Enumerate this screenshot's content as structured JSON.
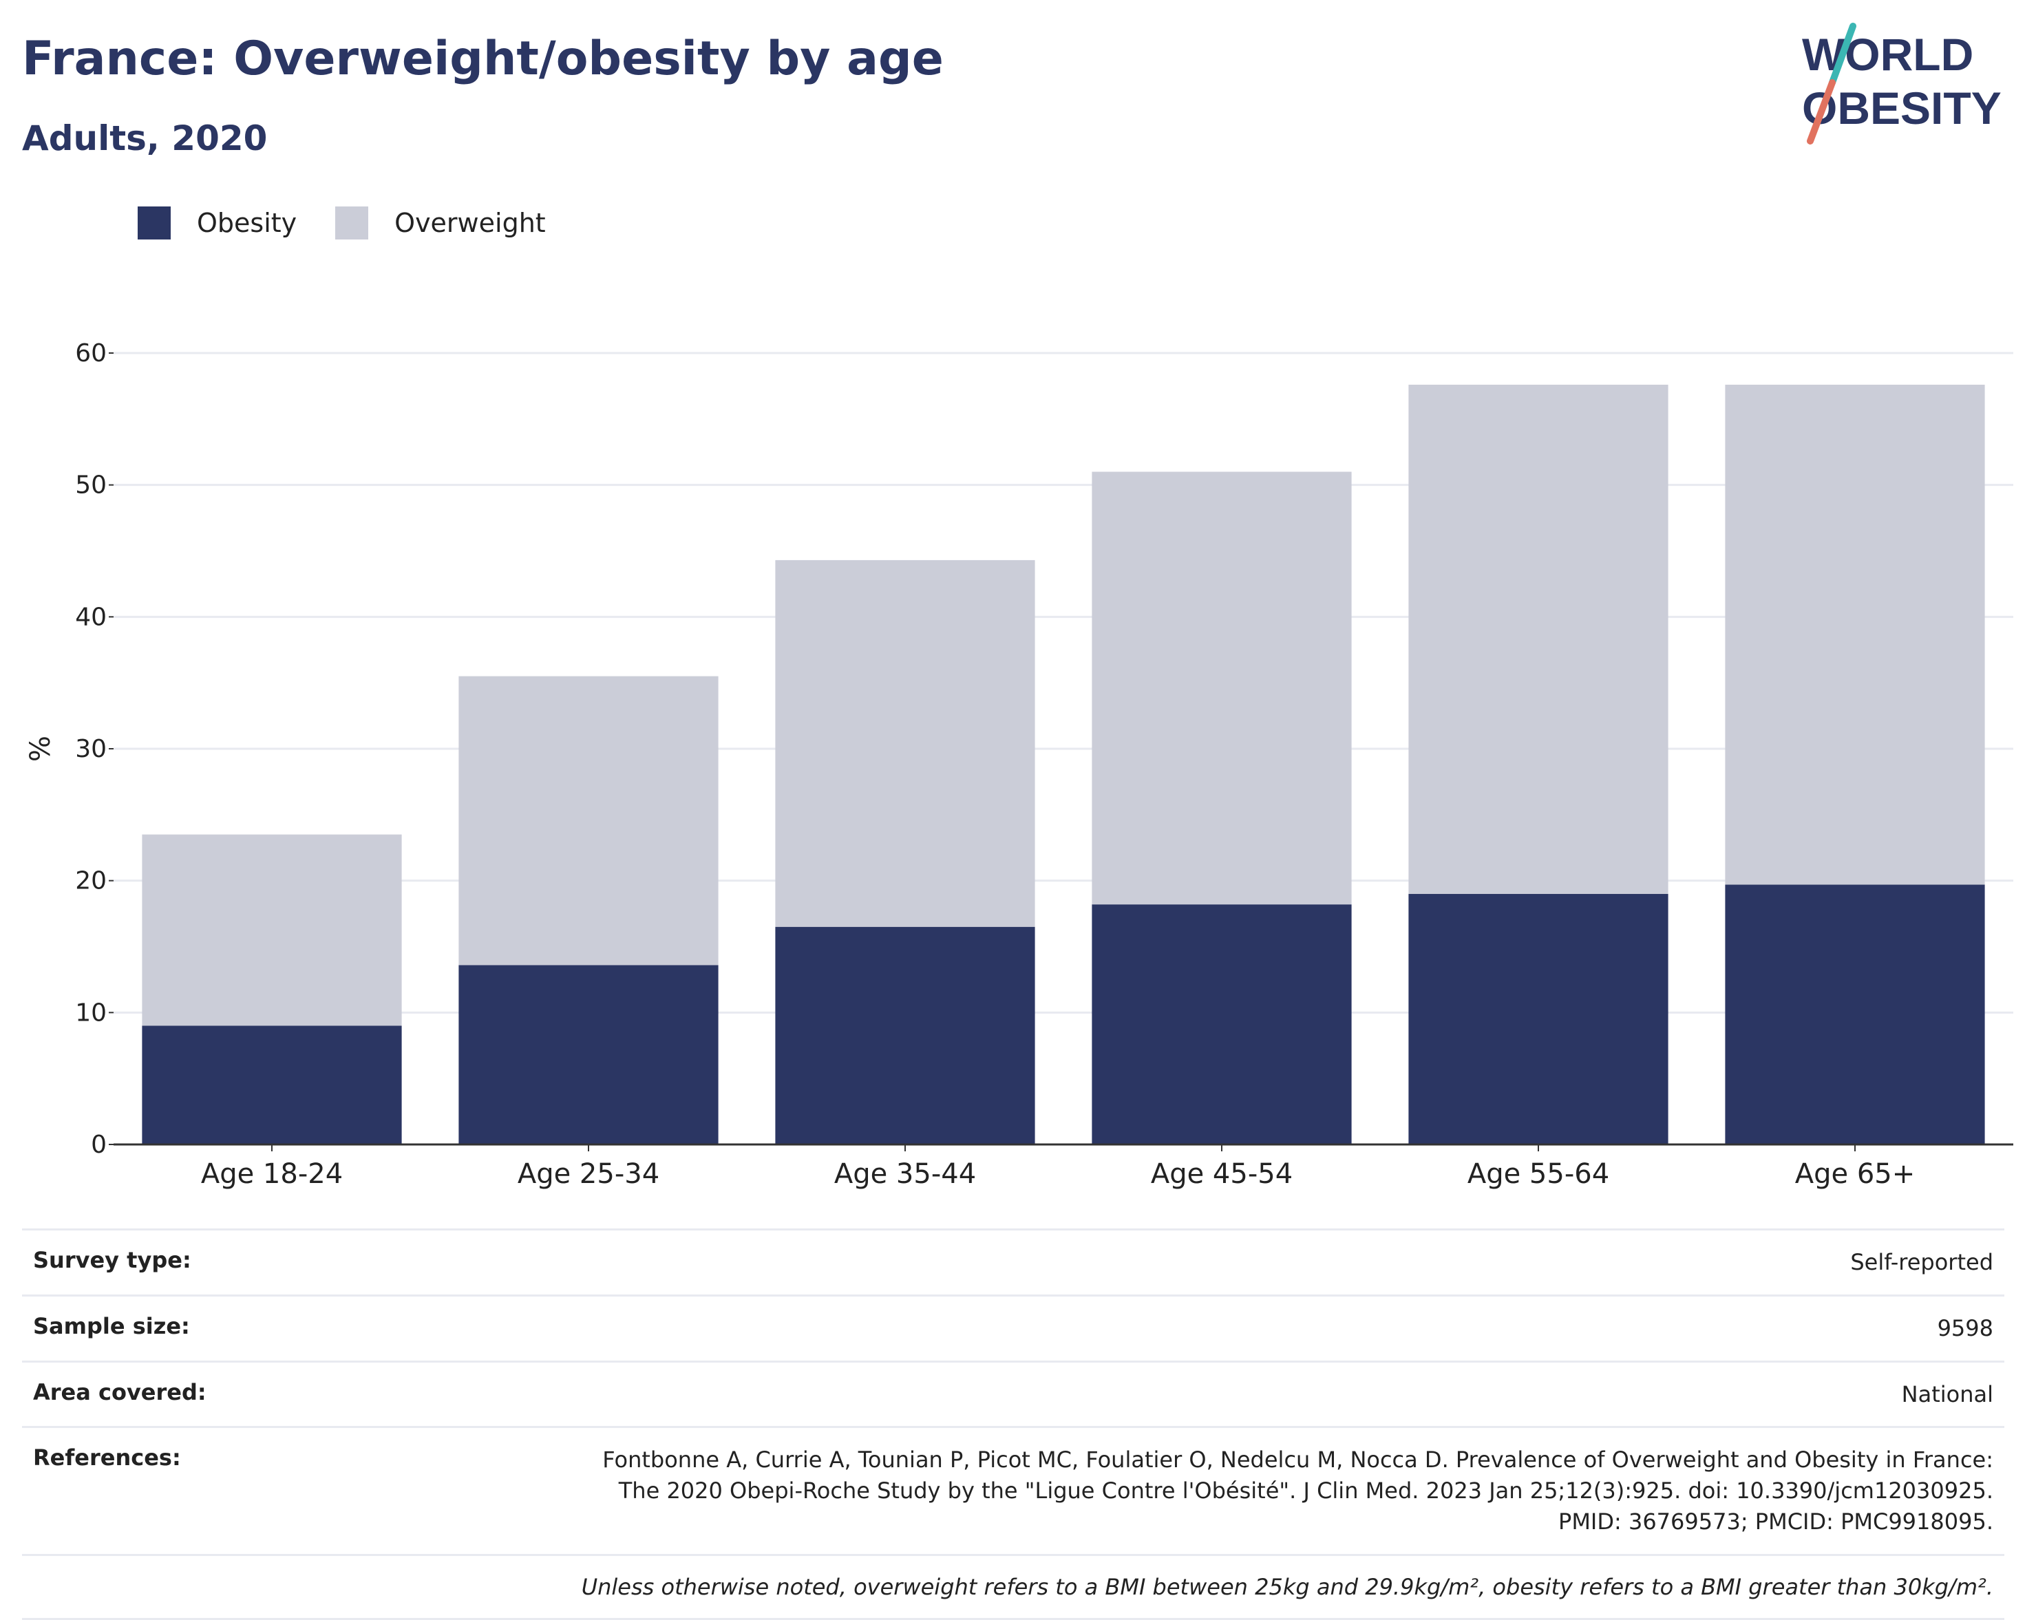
{
  "header": {
    "title": "France: Overweight/obesity by age",
    "subtitle": "Adults, 2020"
  },
  "logo": {
    "line1": "WORLD",
    "line2": "OBESITY"
  },
  "colors": {
    "obesity": "#2b3663",
    "overweight": "#cbcdd8",
    "grid": "#e8eaf0",
    "axis": "#333333"
  },
  "chart_data": {
    "type": "bar",
    "stacked": true,
    "categories": [
      "Age 18-24",
      "Age 25-34",
      "Age 35-44",
      "Age 45-54",
      "Age 55-64",
      "Age 65+"
    ],
    "series": [
      {
        "name": "Obesity",
        "values": [
          9.0,
          13.6,
          16.5,
          18.2,
          19.0,
          19.7
        ]
      },
      {
        "name": "Overweight",
        "values": [
          14.5,
          21.9,
          27.8,
          32.8,
          38.6,
          37.9
        ]
      }
    ],
    "ylabel": "%",
    "ylim": [
      0,
      60
    ],
    "yticks": [
      0,
      10,
      20,
      30,
      40,
      50,
      60
    ],
    "grid": true,
    "legend_position": "top-left"
  },
  "info": [
    {
      "key": "Survey type:",
      "value": "Self-reported"
    },
    {
      "key": "Sample size:",
      "value": "9598"
    },
    {
      "key": "Area covered:",
      "value": "National"
    },
    {
      "key": "References:",
      "value": "Fontbonne A, Currie A, Tounian P, Picot MC, Foulatier O, Nedelcu M, Nocca D. Prevalence of Overweight and Obesity in France: The 2020 Obepi-Roche Study by the \"Ligue Contre l'Obésité\". J Clin Med. 2023 Jan 25;12(3):925. doi: 10.3390/jcm12030925. PMID: 36769573; PMCID: PMC9918095."
    }
  ],
  "footnote": "Unless otherwise noted, overweight refers to a BMI between 25kg and 29.9kg/m², obesity refers to a BMI greater than 30kg/m²."
}
